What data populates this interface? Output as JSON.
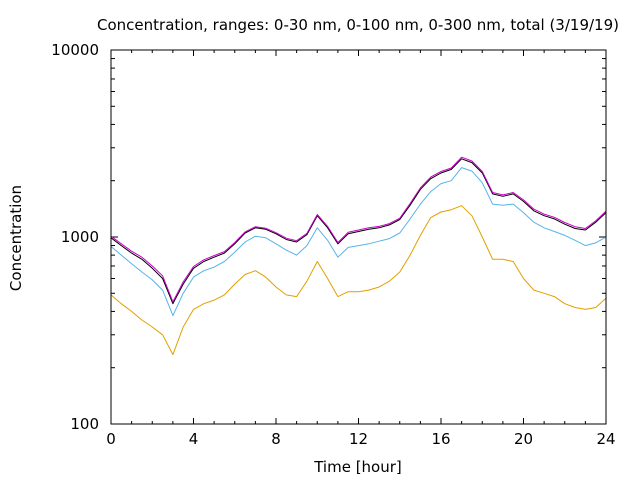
{
  "chart_data": {
    "type": "line",
    "title": "Concentration, ranges: 0-30 nm, 0-100 nm, 0-300 nm, total (3/19/19)",
    "xlabel": "Time [hour]",
    "ylabel": "Concentration",
    "xlim": [
      0,
      24
    ],
    "ylim": [
      100,
      10000
    ],
    "yscale": "log",
    "x_ticks": [
      0,
      4,
      8,
      12,
      16,
      20,
      24
    ],
    "x_tick_labels": [
      "0",
      "4",
      "8",
      "12",
      "16",
      "20",
      "24"
    ],
    "y_ticks": [
      100,
      1000,
      10000
    ],
    "y_tick_labels": [
      "100",
      "1000",
      "10000"
    ],
    "grid": false,
    "legend": "none",
    "x": [
      0,
      0.5,
      1,
      1.5,
      2,
      2.5,
      3,
      3.5,
      4,
      4.5,
      5,
      5.5,
      6,
      6.5,
      7,
      7.5,
      8,
      8.5,
      9,
      9.5,
      10,
      10.5,
      11,
      11.5,
      12,
      12.5,
      13,
      13.5,
      14,
      14.5,
      15,
      15.5,
      16,
      16.5,
      17,
      17.5,
      18,
      18.5,
      19,
      19.5,
      20,
      20.5,
      21,
      21.5,
      22,
      22.5,
      23,
      23.5,
      24
    ],
    "series": [
      {
        "color": "#e0a000",
        "values": [
          490,
          440,
          400,
          360,
          330,
          300,
          235,
          330,
          410,
          440,
          460,
          490,
          560,
          630,
          660,
          610,
          540,
          490,
          480,
          580,
          740,
          600,
          480,
          510,
          510,
          520,
          540,
          580,
          650,
          800,
          1020,
          1270,
          1360,
          1400,
          1470,
          1300,
          1000,
          760,
          760,
          740,
          600,
          520,
          500,
          480,
          440,
          420,
          410,
          420,
          470
        ]
      },
      {
        "color": "#56b4e9",
        "values": [
          890,
          800,
          720,
          650,
          590,
          520,
          380,
          500,
          610,
          660,
          690,
          740,
          830,
          940,
          1010,
          990,
          920,
          850,
          800,
          900,
          1120,
          960,
          780,
          880,
          900,
          920,
          950,
          980,
          1050,
          1250,
          1500,
          1750,
          1930,
          2000,
          2350,
          2250,
          1950,
          1500,
          1480,
          1500,
          1350,
          1200,
          1120,
          1070,
          1020,
          960,
          900,
          930,
          1000
        ]
      },
      {
        "color": "#000000",
        "values": [
          990,
          900,
          820,
          760,
          680,
          600,
          440,
          560,
          680,
          740,
          780,
          820,
          920,
          1050,
          1120,
          1100,
          1040,
          970,
          940,
          1030,
          1300,
          1120,
          920,
          1040,
          1070,
          1100,
          1120,
          1160,
          1240,
          1480,
          1800,
          2050,
          2200,
          2300,
          2620,
          2500,
          2200,
          1700,
          1650,
          1700,
          1550,
          1380,
          1300,
          1250,
          1170,
          1110,
          1090,
          1200,
          1350
        ]
      },
      {
        "color": "#cc00cc",
        "values": [
          1010,
          920,
          840,
          780,
          700,
          620,
          450,
          575,
          695,
          755,
          795,
          835,
          935,
          1065,
          1135,
          1115,
          1055,
          985,
          955,
          1045,
          1320,
          1140,
          935,
          1060,
          1090,
          1120,
          1140,
          1180,
          1260,
          1510,
          1830,
          2090,
          2240,
          2340,
          2670,
          2550,
          2240,
          1730,
          1680,
          1730,
          1580,
          1410,
          1325,
          1275,
          1195,
          1135,
          1110,
          1220,
          1375
        ]
      }
    ]
  }
}
